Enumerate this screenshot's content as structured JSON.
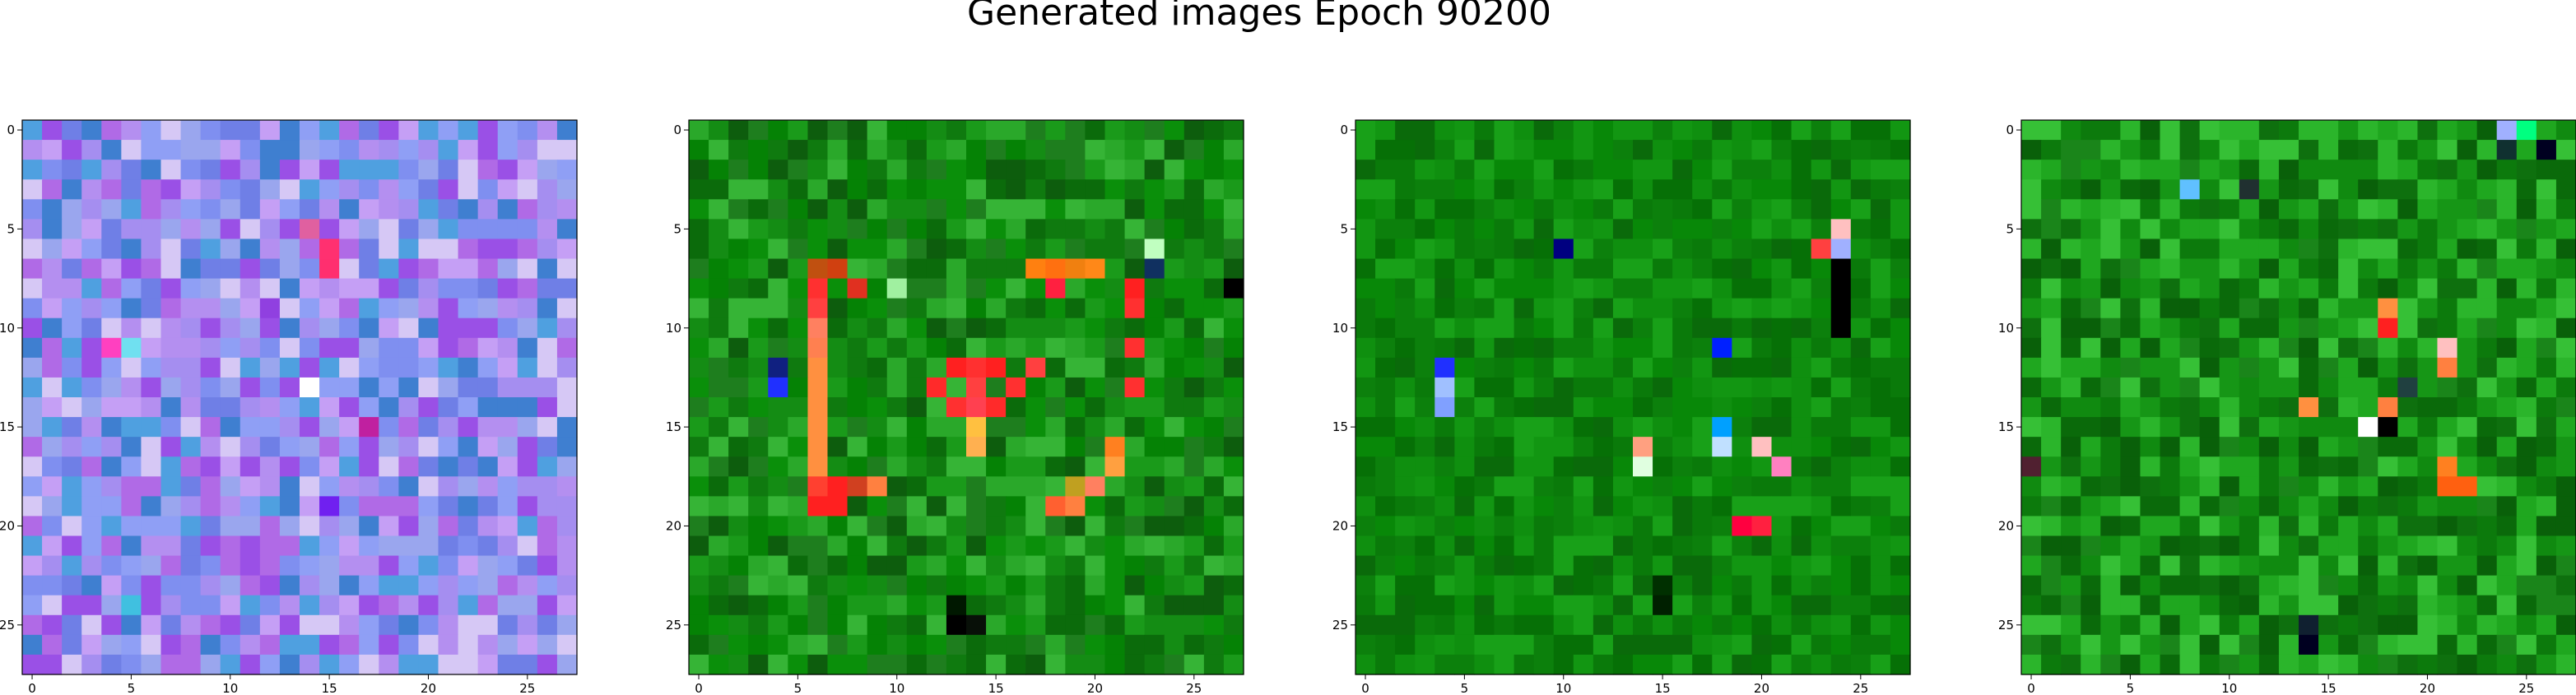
{
  "figure": {
    "title": "Generated images Epoch 90200"
  },
  "chart_data": {
    "type": "heatmap",
    "title": "Generated images Epoch 90200",
    "grid": false,
    "panels": [
      {
        "name": "",
        "rows": 28,
        "cols": 28,
        "xlim": [
          -0.5,
          27.5
        ],
        "ylim": [
          27.5,
          -0.5
        ],
        "x_ticks": [
          0,
          5,
          10,
          15,
          20,
          25
        ],
        "y_ticks": [
          0,
          5,
          10,
          15,
          20,
          25
        ],
        "palette": [
          "#7f8ff0",
          "#a58ef0",
          "#9aa6ee",
          "#b48ff0",
          "#8f9ff5",
          "#c59ff5",
          "#6f7fe6",
          "#4fa0e0",
          "#3f7fd0",
          "#d6c8f5",
          "#b06ae6",
          "#9a50e6"
        ],
        "accents": [
          {
            "row": 5,
            "col": 14,
            "color": "#e060a0"
          },
          {
            "row": 6,
            "col": 15,
            "color": "#ff3070"
          },
          {
            "row": 7,
            "col": 15,
            "color": "#ff2f6f"
          },
          {
            "row": 9,
            "col": 12,
            "color": "#9040e0"
          },
          {
            "row": 11,
            "col": 4,
            "color": "#ff40c0"
          },
          {
            "row": 11,
            "col": 5,
            "color": "#70e0f0"
          },
          {
            "row": 13,
            "col": 14,
            "color": "#ffffff"
          },
          {
            "row": 15,
            "col": 17,
            "color": "#c020a0"
          },
          {
            "row": 19,
            "col": 15,
            "color": "#7020f0"
          },
          {
            "row": 24,
            "col": 5,
            "color": "#40c0e0"
          }
        ]
      },
      {
        "name": "",
        "rows": 28,
        "cols": 28,
        "xlim": [
          -0.5,
          27.5
        ],
        "ylim": [
          27.5,
          -0.5
        ],
        "x_ticks": [
          0,
          5,
          10,
          15,
          20,
          25
        ],
        "y_ticks": [
          0,
          5,
          10,
          15,
          20,
          25
        ],
        "palette": [
          "#0a8f0a",
          "#0f7a0f",
          "#148c14",
          "#0b6b0b",
          "#1a9a1a",
          "#058205",
          "#2aa82a",
          "#0d5d0d",
          "#1e7e1e",
          "#36b436"
        ],
        "accents": [
          {
            "row": 7,
            "col": 17,
            "color": "#ff8010"
          },
          {
            "row": 7,
            "col": 18,
            "color": "#ff7010"
          },
          {
            "row": 7,
            "col": 19,
            "color": "#f08010"
          },
          {
            "row": 7,
            "col": 20,
            "color": "#ff8818"
          },
          {
            "row": 7,
            "col": 6,
            "color": "#c05010"
          },
          {
            "row": 7,
            "col": 7,
            "color": "#d04010"
          },
          {
            "row": 8,
            "col": 6,
            "color": "#ff3030"
          },
          {
            "row": 8,
            "col": 8,
            "color": "#e03020"
          },
          {
            "row": 8,
            "col": 18,
            "color": "#ff2040"
          },
          {
            "row": 8,
            "col": 22,
            "color": "#ff2020"
          },
          {
            "row": 9,
            "col": 6,
            "color": "#ff4040"
          },
          {
            "row": 9,
            "col": 22,
            "color": "#ff3030"
          },
          {
            "row": 10,
            "col": 6,
            "color": "#ff8060"
          },
          {
            "row": 11,
            "col": 6,
            "color": "#ff8050"
          },
          {
            "row": 11,
            "col": 22,
            "color": "#ff3030"
          },
          {
            "row": 12,
            "col": 6,
            "color": "#ff9040"
          },
          {
            "row": 12,
            "col": 13,
            "color": "#ff2020"
          },
          {
            "row": 12,
            "col": 14,
            "color": "#ff3030"
          },
          {
            "row": 12,
            "col": 15,
            "color": "#ff2020"
          },
          {
            "row": 12,
            "col": 17,
            "color": "#ff4040"
          },
          {
            "row": 13,
            "col": 6,
            "color": "#ff9040"
          },
          {
            "row": 13,
            "col": 12,
            "color": "#ff2a2a"
          },
          {
            "row": 13,
            "col": 14,
            "color": "#ff4040"
          },
          {
            "row": 13,
            "col": 16,
            "color": "#ff3030"
          },
          {
            "row": 13,
            "col": 22,
            "color": "#ff3030"
          },
          {
            "row": 14,
            "col": 6,
            "color": "#ff9040"
          },
          {
            "row": 14,
            "col": 13,
            "color": "#ff3030"
          },
          {
            "row": 14,
            "col": 14,
            "color": "#ff4050"
          },
          {
            "row": 14,
            "col": 15,
            "color": "#ff2a2a"
          },
          {
            "row": 15,
            "col": 6,
            "color": "#ff9040"
          },
          {
            "row": 15,
            "col": 14,
            "color": "#ffc040"
          },
          {
            "row": 16,
            "col": 6,
            "color": "#ff9040"
          },
          {
            "row": 16,
            "col": 14,
            "color": "#ffb050"
          },
          {
            "row": 16,
            "col": 21,
            "color": "#ff8020"
          },
          {
            "row": 17,
            "col": 6,
            "color": "#ff9040"
          },
          {
            "row": 17,
            "col": 21,
            "color": "#ffa040"
          },
          {
            "row": 18,
            "col": 6,
            "color": "#ff4030"
          },
          {
            "row": 18,
            "col": 7,
            "color": "#ff2020"
          },
          {
            "row": 18,
            "col": 8,
            "color": "#d04020"
          },
          {
            "row": 18,
            "col": 9,
            "color": "#ff8040"
          },
          {
            "row": 19,
            "col": 6,
            "color": "#ff2020"
          },
          {
            "row": 19,
            "col": 7,
            "color": "#ff2020"
          },
          {
            "row": 19,
            "col": 18,
            "color": "#ff6030"
          },
          {
            "row": 19,
            "col": 19,
            "color": "#ff8040"
          },
          {
            "row": 18,
            "col": 19,
            "color": "#c0a020"
          },
          {
            "row": 18,
            "col": 20,
            "color": "#ff8060"
          },
          {
            "row": 13,
            "col": 4,
            "color": "#2030ff"
          },
          {
            "row": 12,
            "col": 4,
            "color": "#102080"
          },
          {
            "row": 6,
            "col": 23,
            "color": "#c0ffc0"
          },
          {
            "row": 7,
            "col": 23,
            "color": "#103060"
          },
          {
            "row": 8,
            "col": 27,
            "color": "#000000"
          },
          {
            "row": 25,
            "col": 13,
            "color": "#000000"
          },
          {
            "row": 24,
            "col": 13,
            "color": "#001800"
          },
          {
            "row": 25,
            "col": 14,
            "color": "#081008"
          },
          {
            "row": 8,
            "col": 10,
            "color": "#a0f0a0"
          }
        ]
      },
      {
        "name": "",
        "rows": 28,
        "cols": 28,
        "xlim": [
          -0.5,
          27.5
        ],
        "ylim": [
          27.5,
          -0.5
        ],
        "x_ticks": [
          0,
          5,
          10,
          15,
          20,
          25
        ],
        "y_ticks": [
          0,
          5,
          10,
          15,
          20,
          25
        ],
        "palette": [
          "#088808",
          "#0a7a0a",
          "#0f8f0f",
          "#067006",
          "#129612",
          "#0c800c",
          "#18a018",
          "#0a6a0a"
        ],
        "accents": [
          {
            "row": 6,
            "col": 10,
            "color": "#000080"
          },
          {
            "row": 5,
            "col": 24,
            "color": "#ffc0c0"
          },
          {
            "row": 6,
            "col": 23,
            "color": "#ff4040"
          },
          {
            "row": 6,
            "col": 24,
            "color": "#a0b0ff"
          },
          {
            "row": 7,
            "col": 24,
            "color": "#000000"
          },
          {
            "row": 8,
            "col": 24,
            "color": "#000000"
          },
          {
            "row": 9,
            "col": 24,
            "color": "#000000"
          },
          {
            "row": 10,
            "col": 24,
            "color": "#000000"
          },
          {
            "row": 11,
            "col": 18,
            "color": "#0020ff"
          },
          {
            "row": 12,
            "col": 4,
            "color": "#2030ff"
          },
          {
            "row": 13,
            "col": 4,
            "color": "#a0c0ff"
          },
          {
            "row": 14,
            "col": 4,
            "color": "#80a0ff"
          },
          {
            "row": 16,
            "col": 14,
            "color": "#ffa080"
          },
          {
            "row": 16,
            "col": 20,
            "color": "#ffc0c0"
          },
          {
            "row": 17,
            "col": 14,
            "color": "#e0ffe0"
          },
          {
            "row": 17,
            "col": 21,
            "color": "#ff80c0"
          },
          {
            "row": 20,
            "col": 19,
            "color": "#ff0040"
          },
          {
            "row": 20,
            "col": 20,
            "color": "#ff2040"
          },
          {
            "row": 23,
            "col": 15,
            "color": "#003000"
          },
          {
            "row": 24,
            "col": 15,
            "color": "#002000"
          },
          {
            "row": 15,
            "col": 18,
            "color": "#00a0ff"
          },
          {
            "row": 16,
            "col": 18,
            "color": "#c0e0ff"
          }
        ]
      },
      {
        "name": "",
        "rows": 28,
        "cols": 28,
        "xlim": [
          -0.5,
          27.5
        ],
        "ylim": [
          27.5,
          -0.5
        ],
        "x_ticks": [
          0,
          5,
          10,
          15,
          20,
          25
        ],
        "y_ticks": [
          0,
          5,
          10,
          15,
          20,
          25
        ],
        "palette": [
          "#0c7a0c",
          "#108a10",
          "#0a6a0a",
          "#169616",
          "#1fa71f",
          "#096009",
          "#2bb52b",
          "#0e700e",
          "#36c036",
          "#1a851a"
        ],
        "accents": [
          {
            "row": 0,
            "col": 24,
            "color": "#a0b0ff"
          },
          {
            "row": 0,
            "col": 25,
            "color": "#00ff80"
          },
          {
            "row": 1,
            "col": 24,
            "color": "#103030"
          },
          {
            "row": 1,
            "col": 26,
            "color": "#000020"
          },
          {
            "row": 3,
            "col": 11,
            "color": "#203030"
          },
          {
            "row": 3,
            "col": 8,
            "color": "#60c0ff"
          },
          {
            "row": 9,
            "col": 18,
            "color": "#ff9040"
          },
          {
            "row": 10,
            "col": 18,
            "color": "#ff2020"
          },
          {
            "row": 11,
            "col": 21,
            "color": "#ffc0c0"
          },
          {
            "row": 12,
            "col": 21,
            "color": "#ff8040"
          },
          {
            "row": 13,
            "col": 19,
            "color": "#204040"
          },
          {
            "row": 14,
            "col": 14,
            "color": "#ff9040"
          },
          {
            "row": 14,
            "col": 18,
            "color": "#ff8040"
          },
          {
            "row": 15,
            "col": 17,
            "color": "#ffffff"
          },
          {
            "row": 15,
            "col": 18,
            "color": "#000000"
          },
          {
            "row": 18,
            "col": 21,
            "color": "#ff6010"
          },
          {
            "row": 18,
            "col": 22,
            "color": "#ff6010"
          },
          {
            "row": 17,
            "col": 21,
            "color": "#ff8020"
          },
          {
            "row": 17,
            "col": 0,
            "color": "#502030"
          },
          {
            "row": 26,
            "col": 14,
            "color": "#000020"
          },
          {
            "row": 25,
            "col": 14,
            "color": "#102030"
          }
        ]
      }
    ]
  }
}
